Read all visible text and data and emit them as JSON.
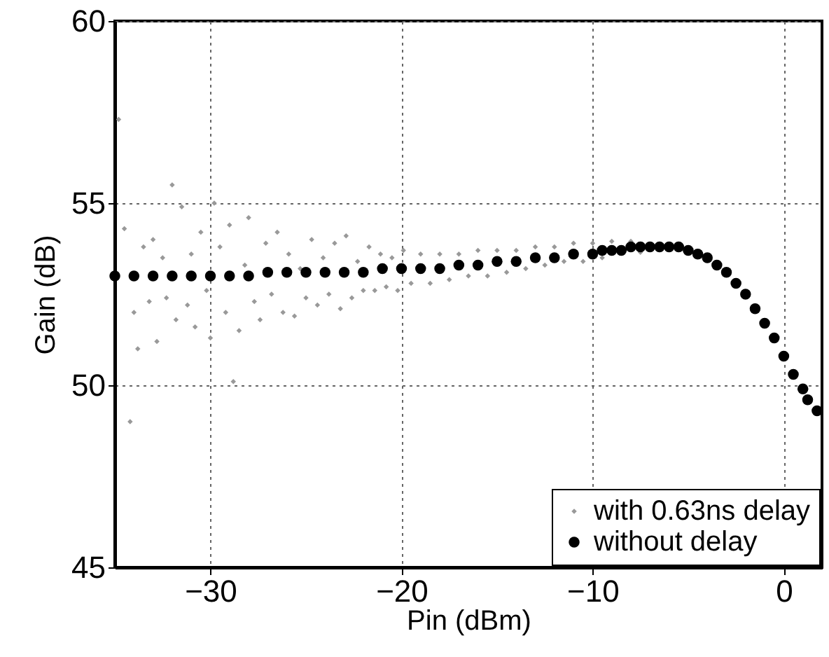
{
  "chart_data": {
    "type": "scatter",
    "xlabel": "Pin (dBm)",
    "ylabel": "Gain (dB)",
    "xlim": [
      -35,
      2
    ],
    "xticks": [
      -30,
      -20,
      -10,
      0
    ],
    "ylim": [
      45,
      60
    ],
    "yticks": [
      45,
      50,
      55,
      60
    ],
    "grid": true,
    "legend": "bottom right",
    "series": [
      {
        "name": "with 0.63ns delay",
        "color": "#999999",
        "marker": "diamond",
        "x": [
          -34.8,
          -34.2,
          -34.5,
          -34.0,
          -33.8,
          -33.5,
          -33.2,
          -33.0,
          -32.8,
          -32.5,
          -32.3,
          -32.0,
          -31.8,
          -31.5,
          -31.2,
          -31.0,
          -30.8,
          -30.5,
          -30.2,
          -30.0,
          -29.8,
          -29.5,
          -29.2,
          -29.0,
          -28.8,
          -28.5,
          -28.2,
          -28.0,
          -27.7,
          -27.4,
          -27.1,
          -26.8,
          -26.5,
          -26.2,
          -25.9,
          -25.6,
          -25.3,
          -25.0,
          -24.7,
          -24.4,
          -24.1,
          -23.8,
          -23.5,
          -23.2,
          -22.9,
          -22.6,
          -22.3,
          -22.0,
          -21.7,
          -21.4,
          -21.1,
          -20.8,
          -20.5,
          -20.2,
          -19.9,
          -19.5,
          -19.0,
          -18.5,
          -18.0,
          -17.5,
          -17.0,
          -16.5,
          -16.0,
          -15.5,
          -15.0,
          -14.5,
          -14.0,
          -13.5,
          -13.0,
          -12.5,
          -12.0,
          -11.5,
          -11.0,
          -10.5,
          -10.0,
          -9.5,
          -9.0,
          -8.0,
          -7.5
        ],
        "values": [
          57.3,
          49.0,
          54.3,
          52.0,
          51.0,
          53.8,
          52.3,
          54.0,
          51.2,
          53.5,
          52.4,
          55.5,
          51.8,
          54.9,
          52.2,
          53.6,
          51.6,
          54.2,
          52.6,
          51.3,
          55.0,
          53.8,
          52.0,
          54.4,
          50.1,
          51.5,
          53.3,
          54.6,
          52.3,
          51.8,
          53.9,
          52.5,
          54.2,
          52.0,
          53.6,
          51.9,
          53.2,
          52.4,
          54.0,
          52.2,
          53.5,
          52.5,
          53.9,
          52.1,
          54.1,
          52.4,
          53.4,
          52.6,
          53.8,
          52.6,
          53.6,
          52.7,
          53.5,
          52.6,
          53.7,
          52.8,
          53.6,
          52.8,
          53.6,
          52.9,
          53.6,
          53.0,
          53.7,
          53.0,
          53.7,
          53.1,
          53.7,
          53.2,
          53.8,
          53.3,
          53.8,
          53.4,
          53.9,
          53.4,
          53.9,
          53.5,
          53.95,
          53.95,
          53.65
        ]
      },
      {
        "name": "without delay",
        "color": "#000000",
        "marker": "circle",
        "x": [
          -35,
          -34,
          -33,
          -32,
          -31,
          -30,
          -29,
          -28,
          -27,
          -26,
          -25,
          -24,
          -23,
          -22,
          -21,
          -20,
          -19,
          -18,
          -17,
          -16,
          -15,
          -14,
          -13,
          -12,
          -11,
          -10,
          -9.5,
          -9,
          -8.5,
          -8,
          -7.5,
          -7,
          -6.5,
          -6,
          -5.5,
          -5,
          -4.5,
          -4,
          -3.5,
          -3,
          -2.5,
          -2,
          -1.5,
          -1,
          -0.5,
          0,
          0.5,
          1,
          1.25,
          1.74
        ],
        "values": [
          53.0,
          53.0,
          53.0,
          53.0,
          53.0,
          53.0,
          53.0,
          53.0,
          53.1,
          53.1,
          53.1,
          53.1,
          53.1,
          53.1,
          53.2,
          53.2,
          53.2,
          53.2,
          53.3,
          53.3,
          53.4,
          53.4,
          53.5,
          53.5,
          53.6,
          53.6,
          53.7,
          53.7,
          53.7,
          53.8,
          53.8,
          53.8,
          53.8,
          53.8,
          53.8,
          53.7,
          53.6,
          53.5,
          53.3,
          53.1,
          52.8,
          52.5,
          52.1,
          51.7,
          51.3,
          50.8,
          50.3,
          49.9,
          49.6,
          49.3
        ]
      }
    ]
  }
}
